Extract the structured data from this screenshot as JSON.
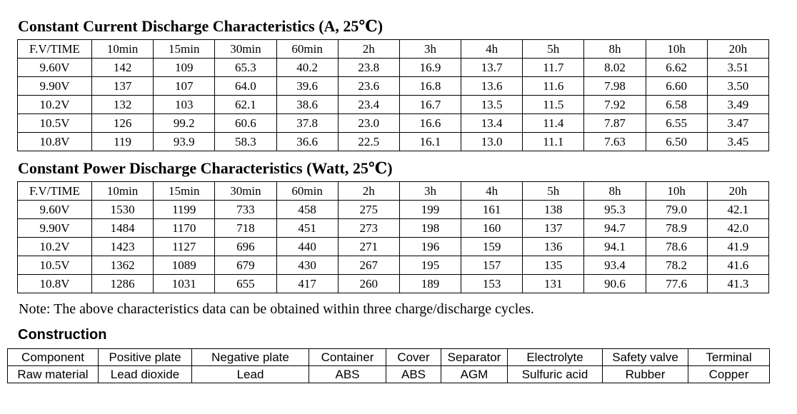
{
  "colors": {
    "background": "#ffffff",
    "text": "#000000",
    "table_border": "#000000"
  },
  "current_table": {
    "title": "Constant Current Discharge Characteristics (A, 25℃)",
    "headers": [
      "F.V/TIME",
      "10min",
      "15min",
      "30min",
      "60min",
      "2h",
      "3h",
      "4h",
      "5h",
      "8h",
      "10h",
      "20h"
    ],
    "rows": [
      [
        "9.60V",
        "142",
        "109",
        "65.3",
        "40.2",
        "23.8",
        "16.9",
        "13.7",
        "11.7",
        "8.02",
        "6.62",
        "3.51"
      ],
      [
        "9.90V",
        "137",
        "107",
        "64.0",
        "39.6",
        "23.6",
        "16.8",
        "13.6",
        "11.6",
        "7.98",
        "6.60",
        "3.50"
      ],
      [
        "10.2V",
        "132",
        "103",
        "62.1",
        "38.6",
        "23.4",
        "16.7",
        "13.5",
        "11.5",
        "7.92",
        "6.58",
        "3.49"
      ],
      [
        "10.5V",
        "126",
        "99.2",
        "60.6",
        "37.8",
        "23.0",
        "16.6",
        "13.4",
        "11.4",
        "7.87",
        "6.55",
        "3.47"
      ],
      [
        "10.8V",
        "119",
        "93.9",
        "58.3",
        "36.6",
        "22.5",
        "16.1",
        "13.0",
        "11.1",
        "7.63",
        "6.50",
        "3.45"
      ]
    ]
  },
  "power_table": {
    "title": "Constant Power Discharge Characteristics (Watt, 25℃)",
    "headers": [
      "F.V/TIME",
      "10min",
      "15min",
      "30min",
      "60min",
      "2h",
      "3h",
      "4h",
      "5h",
      "8h",
      "10h",
      "20h"
    ],
    "rows": [
      [
        "9.60V",
        "1530",
        "1199",
        "733",
        "458",
        "275",
        "199",
        "161",
        "138",
        "95.3",
        "79.0",
        "42.1"
      ],
      [
        "9.90V",
        "1484",
        "1170",
        "718",
        "451",
        "273",
        "198",
        "160",
        "137",
        "94.7",
        "78.9",
        "42.0"
      ],
      [
        "10.2V",
        "1423",
        "1127",
        "696",
        "440",
        "271",
        "196",
        "159",
        "136",
        "94.1",
        "78.6",
        "41.9"
      ],
      [
        "10.5V",
        "1362",
        "1089",
        "679",
        "430",
        "267",
        "195",
        "157",
        "135",
        "93.4",
        "78.2",
        "41.6"
      ],
      [
        "10.8V",
        "1286",
        "1031",
        "655",
        "417",
        "260",
        "189",
        "153",
        "131",
        "90.6",
        "77.6",
        "41.3"
      ]
    ]
  },
  "note": "Note: The above characteristics data can be obtained within three charge/discharge cycles.",
  "construction": {
    "title": "Construction",
    "rows": [
      [
        "Component",
        "Positive plate",
        "Negative plate",
        "Container",
        "Cover",
        "Separator",
        "Electrolyte",
        "Safety valve",
        "Terminal"
      ],
      [
        "Raw material",
        "Lead dioxide",
        "Lead",
        "ABS",
        "ABS",
        "AGM",
        "Sulfuric acid",
        "Rubber",
        "Copper"
      ]
    ]
  }
}
